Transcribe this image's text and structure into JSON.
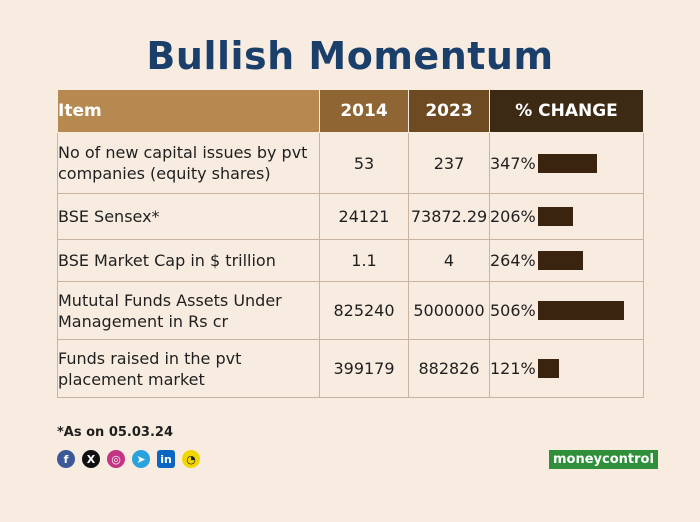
{
  "title": "Bullish Momentum",
  "table": {
    "headers": [
      "Item",
      "2014",
      "2023",
      "% CHANGE"
    ],
    "rows": [
      {
        "item": "No of new capital issues by pvt companies (equity shares)",
        "v2014": "53",
        "v2023": "237",
        "change": "347%"
      },
      {
        "item": "BSE Sensex*",
        "v2014": "24121",
        "v2023": "73872.29",
        "change": "206%"
      },
      {
        "item": "BSE Market Cap in $ trillion",
        "v2014": "1.1",
        "v2023": "4",
        "change": "264%"
      },
      {
        "item": "Mututal Funds Assets Under Management in Rs cr",
        "v2014": "825240",
        "v2023": "5000000",
        "change": "506%"
      },
      {
        "item": "Funds raised in the pvt placement market",
        "v2014": "399179",
        "v2023": "882826",
        "change": "121%"
      }
    ]
  },
  "chart_data": {
    "type": "table",
    "columns": [
      "Item",
      "2014",
      "2023",
      "% CHANGE"
    ],
    "rows": [
      [
        "No of new capital issues by pvt companies (equity shares)",
        53,
        237,
        347
      ],
      [
        "BSE Sensex*",
        24121,
        73872.29,
        206
      ],
      [
        "BSE Market Cap in $ trillion",
        1.1,
        4,
        264
      ],
      [
        "Mututal Funds Assets Under Management in Rs cr",
        825240,
        5000000,
        506
      ],
      [
        "Funds raised in the pvt placement market",
        399179,
        882826,
        121
      ]
    ],
    "bar_values": [
      347,
      206,
      264,
      506,
      121
    ],
    "title": "Bullish Momentum"
  },
  "footnote": "*As on 05.03.24",
  "social_icons": [
    "facebook-icon",
    "x-icon",
    "instagram-icon",
    "telegram-icon",
    "linkedin-icon",
    "snapchat-icon"
  ],
  "brand": "moneycontrol",
  "colors": {
    "title": "#1b3f6b",
    "bar": "#3a2410",
    "background": "#f8ece1"
  }
}
